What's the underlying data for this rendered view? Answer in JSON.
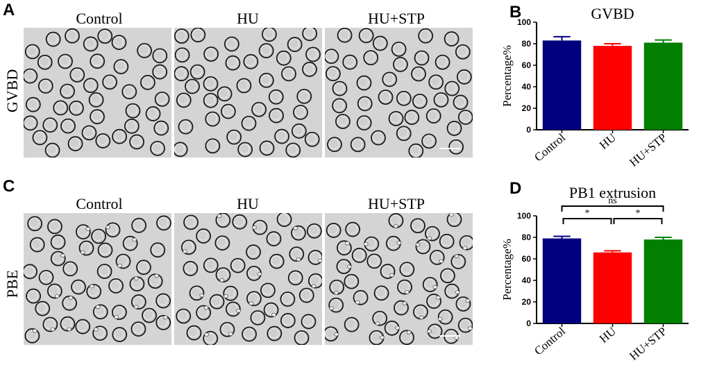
{
  "panels": {
    "A": {
      "letter": "A",
      "row_label": "GVBD",
      "columns": [
        "Control",
        "HU",
        "HU+STP"
      ]
    },
    "B": {
      "letter": "B"
    },
    "C": {
      "letter": "C",
      "row_label": "PBE",
      "columns": [
        "Control",
        "HU",
        "HU+STP"
      ]
    },
    "D": {
      "letter": "D"
    }
  },
  "colors": {
    "control": "#00007f",
    "hu": "#ff0000",
    "hu_stp": "#007f00",
    "micrograph_bg": "#d4d4d4",
    "oocyte_ring": "#1a1a1a",
    "scale_bar": "#ffffff"
  },
  "chart_data": [
    {
      "type": "bar",
      "title": "GVBD",
      "ylabel": "Percentage%",
      "xlabel": "",
      "categories": [
        "Control",
        "HU",
        "HU+STP"
      ],
      "values": [
        83,
        78,
        81
      ],
      "errors": [
        3.5,
        2,
        2.5
      ],
      "ylim": [
        0,
        100
      ],
      "yticks": [
        0,
        20,
        40,
        60,
        80,
        100
      ],
      "significance": []
    },
    {
      "type": "bar",
      "title": "PB1 extrusion",
      "ylabel": "Percentage%",
      "xlabel": "",
      "categories": [
        "Control",
        "HU",
        "HU+STP"
      ],
      "values": [
        79,
        66,
        78
      ],
      "errors": [
        2,
        1.5,
        2
      ],
      "ylim": [
        0,
        100
      ],
      "yticks": [
        0,
        20,
        40,
        60,
        80,
        100
      ],
      "significance": [
        {
          "from": 0,
          "to": 1,
          "label": "*"
        },
        {
          "from": 1,
          "to": 2,
          "label": "*"
        },
        {
          "from": 0,
          "to": 2,
          "label": "ns"
        }
      ]
    }
  ]
}
